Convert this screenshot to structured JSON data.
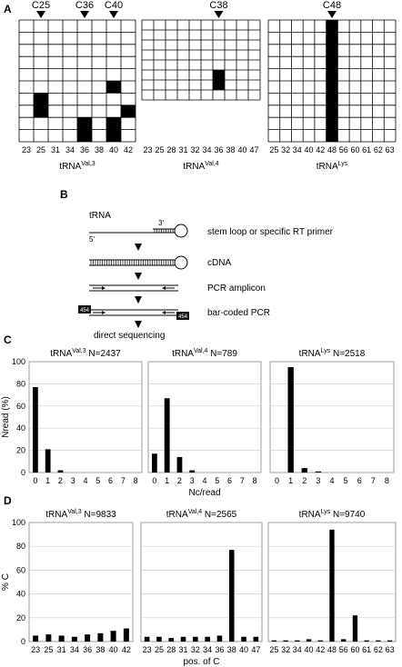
{
  "panel_labels": {
    "a": "A",
    "b": "B",
    "c": "C",
    "d": "D"
  },
  "grids": [
    {
      "name_base": "tRNA",
      "name_sup": "Val,3",
      "markers": [
        {
          "label": "C25",
          "col": 1
        },
        {
          "label": "C36",
          "col": 4
        },
        {
          "label": "C40",
          "col": 6
        }
      ],
      "positions": [
        "23",
        "25",
        "31",
        "34",
        "36",
        "38",
        "40",
        "42"
      ],
      "n_rows": 10,
      "filled_cells": [
        [
          6,
          1
        ],
        [
          7,
          1
        ],
        [
          5,
          6
        ],
        [
          7,
          7
        ],
        [
          8,
          4
        ],
        [
          9,
          4
        ],
        [
          8,
          6
        ],
        [
          9,
          6
        ]
      ]
    },
    {
      "name_base": "tRNA",
      "name_sup": "Val,4",
      "markers": [
        {
          "label": "C38",
          "col": 6
        }
      ],
      "positions": [
        "23",
        "25",
        "28",
        "31",
        "32",
        "34",
        "36",
        "38",
        "40",
        "47"
      ],
      "n_rows": 8,
      "filled_cells": [
        [
          5,
          6
        ],
        [
          6,
          6
        ]
      ]
    },
    {
      "name_base": "tRNA",
      "name_sup": "Lys",
      "markers": [
        {
          "label": "C48",
          "col": 5
        }
      ],
      "positions": [
        "25",
        "32",
        "34",
        "40",
        "42",
        "48",
        "56",
        "60",
        "61",
        "62",
        "63"
      ],
      "n_rows": 10,
      "filled_cells": [
        [
          0,
          5
        ],
        [
          1,
          5
        ],
        [
          2,
          5
        ],
        [
          3,
          5
        ],
        [
          4,
          5
        ],
        [
          5,
          5
        ],
        [
          6,
          5
        ],
        [
          7,
          5
        ],
        [
          8,
          5
        ],
        [
          9,
          5
        ]
      ]
    }
  ],
  "scheme": {
    "trna_label": "tRNA",
    "end3": "3'",
    "end5": "5'",
    "steps": [
      "stem loop or specific RT primer",
      "cDNA",
      "PCR amplicon",
      "bar-coded PCR",
      "direct sequencing"
    ],
    "barcode": "454"
  },
  "chart_data": [
    {
      "type": "bar",
      "panel": "C",
      "title_base": "tRNA",
      "title_sup": "Val,3",
      "title_n": "N=2437",
      "categories": [
        "0",
        "1",
        "2",
        "3",
        "4",
        "5",
        "6",
        "7",
        "8"
      ],
      "values": [
        77,
        21,
        2,
        0,
        0,
        0,
        0,
        0,
        0
      ],
      "ylim": [
        0,
        100
      ],
      "yticks": [
        "0",
        "20",
        "40",
        "60",
        "80",
        "100"
      ],
      "ylabel": "Nread (%)",
      "xlabel": "",
      "grid": true
    },
    {
      "type": "bar",
      "panel": "C",
      "title_base": "tRNA",
      "title_sup": "Val,4",
      "title_n": "N=789",
      "categories": [
        "0",
        "1",
        "2",
        "3",
        "4",
        "5",
        "6",
        "7",
        "8"
      ],
      "values": [
        17,
        67,
        14,
        2,
        0,
        0,
        0,
        0,
        0
      ],
      "ylim": [
        0,
        100
      ],
      "yticks": [],
      "ylabel": "",
      "xlabel": "Nc/read",
      "grid": true
    },
    {
      "type": "bar",
      "panel": "C",
      "title_base": "tRNA",
      "title_sup": "Lys",
      "title_n": "N=2518",
      "categories": [
        "0",
        "1",
        "2",
        "3",
        "4",
        "5",
        "6",
        "7",
        "8"
      ],
      "values": [
        0,
        95,
        4,
        1,
        0,
        0,
        0,
        0,
        0
      ],
      "ylim": [
        0,
        100
      ],
      "yticks": [],
      "ylabel": "",
      "xlabel": "",
      "grid": true
    },
    {
      "type": "bar",
      "panel": "D",
      "title_base": "tRNA",
      "title_sup": "Val,3",
      "title_n": "N=9833",
      "categories": [
        "23",
        "25",
        "31",
        "34",
        "36",
        "38",
        "40",
        "42"
      ],
      "values": [
        5,
        6,
        5,
        4,
        6,
        7,
        9,
        11
      ],
      "ylim": [
        0,
        100
      ],
      "yticks": [
        "0",
        "20",
        "40",
        "60",
        "80",
        "100"
      ],
      "ylabel": "% C",
      "xlabel": "",
      "grid": true
    },
    {
      "type": "bar",
      "panel": "D",
      "title_base": "tRNA",
      "title_sup": "Val,4",
      "title_n": "N=2565",
      "categories": [
        "23",
        "25",
        "28",
        "31",
        "32",
        "34",
        "36",
        "38",
        "40",
        "47"
      ],
      "values": [
        4,
        4,
        3,
        4,
        4,
        4,
        5,
        77,
        4,
        4
      ],
      "ylim": [
        0,
        100
      ],
      "yticks": [],
      "ylabel": "",
      "xlabel": "pos. of C",
      "grid": true
    },
    {
      "type": "bar",
      "panel": "D",
      "title_base": "tRNA",
      "title_sup": "Lys",
      "title_n": "N=9740",
      "categories": [
        "25",
        "32",
        "34",
        "40",
        "42",
        "48",
        "56",
        "60",
        "61",
        "62",
        "63"
      ],
      "values": [
        1,
        1,
        1,
        2,
        1,
        94,
        2,
        22,
        1,
        1,
        1
      ],
      "ylim": [
        0,
        100
      ],
      "yticks": [],
      "ylabel": "",
      "xlabel": "",
      "grid": true
    }
  ]
}
